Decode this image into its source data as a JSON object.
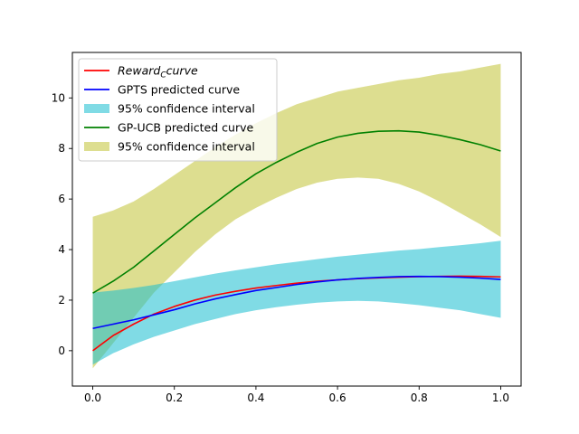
{
  "chart_data": {
    "type": "line",
    "title": "",
    "xlabel": "",
    "ylabel": "",
    "xlim": [
      -0.05,
      1.05
    ],
    "ylim": [
      -1.4,
      11.8
    ],
    "xticks": [
      0.0,
      0.2,
      0.4,
      0.6,
      0.8,
      1.0
    ],
    "xtick_labels": [
      "0.0",
      "0.2",
      "0.4",
      "0.6",
      "0.8",
      "1.0"
    ],
    "yticks": [
      0,
      2,
      4,
      6,
      8,
      10
    ],
    "ytick_labels": [
      "0",
      "2",
      "4",
      "6",
      "8",
      "10"
    ],
    "grid": false,
    "legend_position": "upper-left",
    "x": [
      0.0,
      0.05,
      0.1,
      0.15,
      0.2,
      0.25,
      0.3,
      0.35,
      0.4,
      0.45,
      0.5,
      0.55,
      0.6,
      0.65,
      0.7,
      0.75,
      0.8,
      0.85,
      0.9,
      0.95,
      1.0
    ],
    "bands": [
      {
        "name": "95% confidence interval",
        "legend_index": 4,
        "color": "#bcbd22",
        "opacity": 0.5,
        "lower": [
          -0.7,
          0.3,
          1.3,
          2.3,
          3.1,
          3.9,
          4.6,
          5.2,
          5.65,
          6.05,
          6.4,
          6.65,
          6.8,
          6.85,
          6.8,
          6.6,
          6.3,
          5.9,
          5.45,
          5.0,
          4.5
        ],
        "upper": [
          5.3,
          5.55,
          5.9,
          6.4,
          6.95,
          7.5,
          8.05,
          8.55,
          9.0,
          9.4,
          9.75,
          10.0,
          10.25,
          10.4,
          10.55,
          10.7,
          10.8,
          10.95,
          11.05,
          11.2,
          11.35
        ]
      },
      {
        "name": "95% confidence interval",
        "legend_index": 2,
        "color": "#17becf",
        "opacity": 0.55,
        "lower": [
          -0.55,
          -0.1,
          0.25,
          0.55,
          0.8,
          1.05,
          1.25,
          1.45,
          1.6,
          1.72,
          1.82,
          1.9,
          1.95,
          1.97,
          1.95,
          1.88,
          1.8,
          1.7,
          1.6,
          1.45,
          1.3
        ],
        "upper": [
          2.3,
          2.38,
          2.48,
          2.6,
          2.75,
          2.9,
          3.05,
          3.18,
          3.3,
          3.42,
          3.52,
          3.62,
          3.72,
          3.8,
          3.88,
          3.96,
          4.02,
          4.1,
          4.17,
          4.25,
          4.35
        ]
      }
    ],
    "series": [
      {
        "name": "Reward_Ccurve",
        "legend_index": 0,
        "color": "#ff0000",
        "values": [
          0.0,
          0.6,
          1.05,
          1.45,
          1.75,
          2.0,
          2.2,
          2.35,
          2.48,
          2.58,
          2.67,
          2.75,
          2.8,
          2.85,
          2.88,
          2.91,
          2.93,
          2.94,
          2.95,
          2.94,
          2.92
        ]
      },
      {
        "name": "GPTS predicted curve",
        "legend_index": 1,
        "color": "#0000ff",
        "values": [
          0.88,
          1.05,
          1.22,
          1.42,
          1.62,
          1.85,
          2.05,
          2.22,
          2.38,
          2.5,
          2.62,
          2.72,
          2.8,
          2.86,
          2.9,
          2.93,
          2.94,
          2.93,
          2.91,
          2.87,
          2.82
        ]
      },
      {
        "name": "GP-UCB predicted curve",
        "legend_index": 3,
        "color": "#008000",
        "values": [
          2.28,
          2.75,
          3.3,
          3.95,
          4.6,
          5.25,
          5.85,
          6.45,
          7.0,
          7.45,
          7.85,
          8.2,
          8.45,
          8.6,
          8.68,
          8.7,
          8.65,
          8.52,
          8.35,
          8.15,
          7.9
        ]
      }
    ],
    "legend": [
      {
        "label_main": "Reward",
        "label_sub": "C",
        "label_rest": "curve",
        "italic": true,
        "kind": "line",
        "color": "#ff0000"
      },
      {
        "label": "GPTS predicted curve",
        "kind": "line",
        "color": "#0000ff"
      },
      {
        "label": "95% confidence interval",
        "kind": "patch",
        "color": "#17becf",
        "opacity": 0.55
      },
      {
        "label": "GP-UCB predicted curve",
        "kind": "line",
        "color": "#008000"
      },
      {
        "label": "95% confidence interval",
        "kind": "patch",
        "color": "#bcbd22",
        "opacity": 0.5
      }
    ]
  }
}
